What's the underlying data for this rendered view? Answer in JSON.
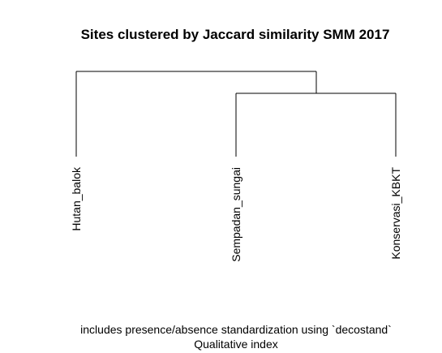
{
  "chart": {
    "title": "Sites clustered by Jaccard similarity SMM 2017",
    "caption_line1": "includes presence/absence standardization using `decostand`",
    "caption_line2": "Qualitative index",
    "leaves": [
      "Hutan_balok",
      "Sempadan_sungai",
      "Konservasi_KBKT"
    ]
  },
  "chart_data": {
    "type": "dendrogram",
    "leaves": [
      "Hutan_balok",
      "Sempadan_sungai",
      "Konservasi_KBKT"
    ],
    "merges": [
      {
        "left": "Sempadan_sungai",
        "right": "Konservasi_KBKT",
        "height": 0.85
      },
      {
        "left": "Hutan_balok",
        "right": "cluster(Sempadan_sungai, Konservasi_KBKT)",
        "height": 1.0
      }
    ],
    "title": "Sites clustered by Jaccard similarity SMM 2017",
    "axes_shown": false
  }
}
